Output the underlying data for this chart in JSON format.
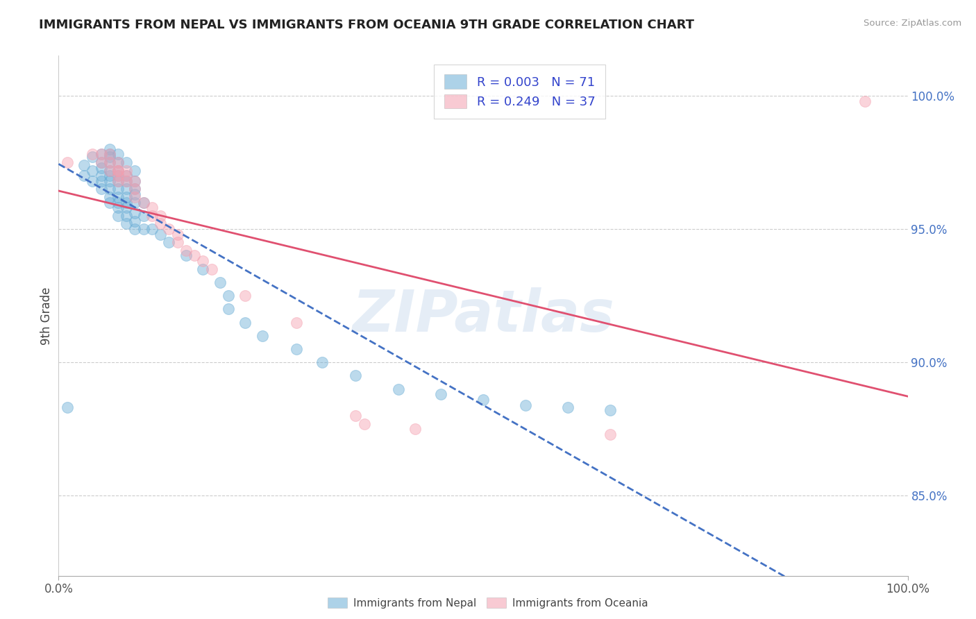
{
  "title": "IMMIGRANTS FROM NEPAL VS IMMIGRANTS FROM OCEANIA 9TH GRADE CORRELATION CHART",
  "source_text": "Source: ZipAtlas.com",
  "ylabel": "9th Grade",
  "x_min": 0.0,
  "x_max": 1.0,
  "y_min": 0.82,
  "y_max": 1.015,
  "y_tick_labels_right": [
    "100.0%",
    "95.0%",
    "90.0%",
    "85.0%"
  ],
  "y_tick_positions_right": [
    1.0,
    0.95,
    0.9,
    0.85
  ],
  "nepal_color": "#6baed6",
  "oceania_color": "#f4a0b0",
  "nepal_line_color": "#4472c4",
  "oceania_line_color": "#e05070",
  "nepal_R": 0.003,
  "nepal_N": 71,
  "oceania_R": 0.249,
  "oceania_N": 37,
  "nepal_scatter_x": [
    0.01,
    0.03,
    0.03,
    0.04,
    0.04,
    0.04,
    0.05,
    0.05,
    0.05,
    0.05,
    0.05,
    0.05,
    0.06,
    0.06,
    0.06,
    0.06,
    0.06,
    0.06,
    0.06,
    0.06,
    0.06,
    0.06,
    0.07,
    0.07,
    0.07,
    0.07,
    0.07,
    0.07,
    0.07,
    0.07,
    0.07,
    0.07,
    0.08,
    0.08,
    0.08,
    0.08,
    0.08,
    0.08,
    0.08,
    0.08,
    0.08,
    0.09,
    0.09,
    0.09,
    0.09,
    0.09,
    0.09,
    0.09,
    0.09,
    0.1,
    0.1,
    0.1,
    0.11,
    0.12,
    0.13,
    0.15,
    0.17,
    0.19,
    0.2,
    0.2,
    0.22,
    0.24,
    0.28,
    0.31,
    0.35,
    0.4,
    0.45,
    0.5,
    0.55,
    0.6,
    0.65
  ],
  "nepal_scatter_y": [
    0.883,
    0.97,
    0.974,
    0.968,
    0.972,
    0.977,
    0.965,
    0.968,
    0.97,
    0.973,
    0.975,
    0.978,
    0.96,
    0.962,
    0.965,
    0.968,
    0.97,
    0.972,
    0.975,
    0.977,
    0.978,
    0.98,
    0.955,
    0.958,
    0.96,
    0.962,
    0.965,
    0.968,
    0.97,
    0.972,
    0.975,
    0.978,
    0.952,
    0.955,
    0.958,
    0.96,
    0.962,
    0.965,
    0.968,
    0.97,
    0.975,
    0.95,
    0.953,
    0.956,
    0.96,
    0.963,
    0.965,
    0.968,
    0.972,
    0.95,
    0.955,
    0.96,
    0.95,
    0.948,
    0.945,
    0.94,
    0.935,
    0.93,
    0.925,
    0.92,
    0.915,
    0.91,
    0.905,
    0.9,
    0.895,
    0.89,
    0.888,
    0.886,
    0.884,
    0.883,
    0.882
  ],
  "oceania_scatter_x": [
    0.01,
    0.04,
    0.05,
    0.05,
    0.06,
    0.06,
    0.06,
    0.07,
    0.07,
    0.07,
    0.07,
    0.07,
    0.08,
    0.08,
    0.08,
    0.09,
    0.09,
    0.09,
    0.1,
    0.11,
    0.11,
    0.12,
    0.12,
    0.13,
    0.14,
    0.14,
    0.15,
    0.16,
    0.17,
    0.18,
    0.22,
    0.28,
    0.35,
    0.36,
    0.42,
    0.65,
    0.95
  ],
  "oceania_scatter_y": [
    0.975,
    0.978,
    0.978,
    0.975,
    0.978,
    0.975,
    0.972,
    0.975,
    0.972,
    0.972,
    0.97,
    0.968,
    0.972,
    0.97,
    0.968,
    0.968,
    0.965,
    0.962,
    0.96,
    0.958,
    0.955,
    0.955,
    0.952,
    0.95,
    0.948,
    0.945,
    0.942,
    0.94,
    0.938,
    0.935,
    0.925,
    0.915,
    0.88,
    0.877,
    0.875,
    0.873,
    0.998
  ],
  "watermark": "ZIPatlas"
}
